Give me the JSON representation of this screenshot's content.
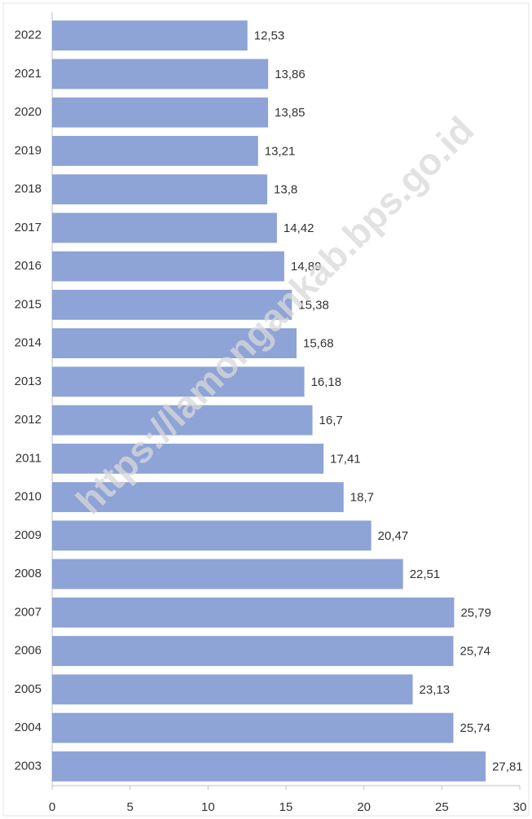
{
  "chart_data": {
    "type": "bar",
    "orientation": "horizontal",
    "annotation": "https://lamongankab.bps.go.id",
    "categories": [
      "2022",
      "2021",
      "2020",
      "2019",
      "2018",
      "2017",
      "2016",
      "2015",
      "2014",
      "2013",
      "2012",
      "2011",
      "2010",
      "2009",
      "2008",
      "2007",
      "2006",
      "2005",
      "2004",
      "2003"
    ],
    "values": [
      12.53,
      13.86,
      13.85,
      13.21,
      13.8,
      14.42,
      14.89,
      15.38,
      15.68,
      16.18,
      16.7,
      17.41,
      18.7,
      20.47,
      22.51,
      25.79,
      25.74,
      23.13,
      25.74,
      27.81
    ],
    "value_labels": [
      "12,53",
      "13,86",
      "13,85",
      "13,21",
      "13,8",
      "14,42",
      "14,89",
      "15,38",
      "15,68",
      "16,18",
      "16,7",
      "17,41",
      "18,7",
      "20,47",
      "22,51",
      "25,79",
      "25,74",
      "23,13",
      "25,74",
      "27,81"
    ],
    "color": "#8ea3d6",
    "xlim": [
      0,
      30
    ],
    "xticks": [
      0,
      5,
      10,
      15,
      20,
      25,
      30
    ]
  }
}
